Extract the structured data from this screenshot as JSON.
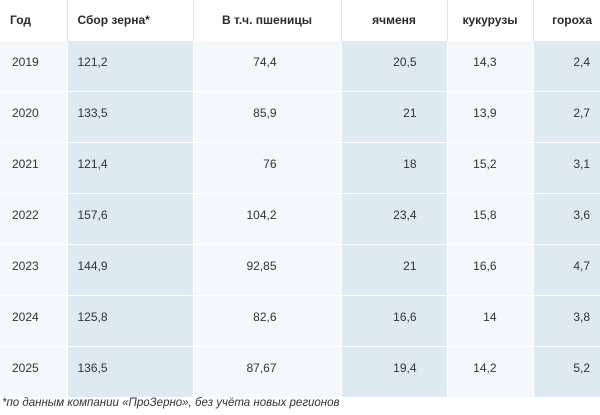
{
  "table": {
    "headers": [
      "Год",
      "Сбор зерна*",
      "В т.ч. пшеницы",
      "ячменя",
      "кукурузы",
      "гороха"
    ],
    "rows": [
      [
        "2019",
        "121,2",
        "74,4",
        "20,5",
        "14,3",
        "2,4"
      ],
      [
        "2020",
        "133,5",
        "85,9",
        "21",
        "13,9",
        "2,7"
      ],
      [
        "2021",
        "121,4",
        "76",
        "18",
        "15,2",
        "3,1"
      ],
      [
        "2022",
        "157,6",
        "104,2",
        "23,4",
        "15,8",
        "3,6"
      ],
      [
        "2023",
        "144,9",
        "92,85",
        "21",
        "16,6",
        "4,7"
      ],
      [
        "2024",
        "125,8",
        "82,6",
        "16,6",
        "14",
        "3,8"
      ],
      [
        "2025",
        "136,5",
        "87,67",
        "19,4",
        "14,2",
        "5,2"
      ]
    ]
  },
  "footnote": "*по данным компании «ПроЗерно», без учёта новых регионов",
  "colors": {
    "cell_light": "#f4f8fb",
    "cell_dark": "#ddeaf2",
    "text": "#333333"
  }
}
